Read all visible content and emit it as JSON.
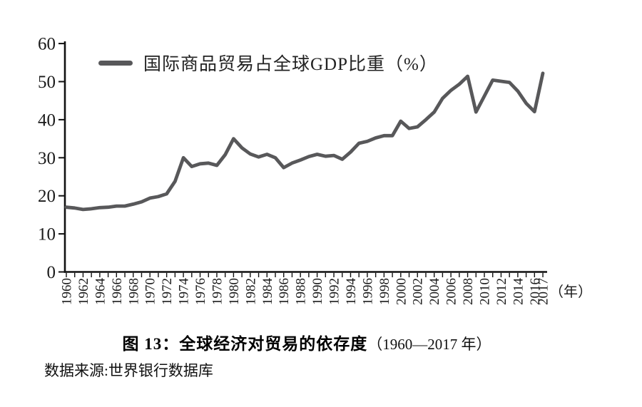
{
  "chart_data": {
    "type": "line",
    "title": "图 13：全球经济对贸易的依存度（1960—2017 年）",
    "legend": "国际商品贸易占全球GDP比重（%）",
    "legend_position": "top-left",
    "grid": "off",
    "line_color": "#58585a",
    "axis_color": "#111111",
    "x_axis": {
      "unit": "（年）",
      "tick_labels": [
        "1960",
        "1962",
        "1964",
        "1966",
        "1968",
        "1970",
        "1972",
        "1974",
        "1976",
        "1978",
        "1980",
        "1982",
        "1984",
        "1986",
        "1988",
        "1990",
        "1992",
        "1994",
        "1996",
        "1998",
        "2000",
        "2002",
        "2004",
        "2006",
        "2008",
        "2010",
        "2012",
        "2014",
        "2016",
        "2017"
      ]
    },
    "y_axis": {
      "ticks": [
        0,
        10,
        20,
        30,
        40,
        50,
        60
      ],
      "ylim": [
        0,
        60
      ]
    },
    "years": [
      1960,
      1961,
      1962,
      1963,
      1964,
      1965,
      1966,
      1967,
      1968,
      1969,
      1970,
      1971,
      1972,
      1973,
      1974,
      1975,
      1976,
      1977,
      1978,
      1979,
      1980,
      1981,
      1982,
      1983,
      1984,
      1985,
      1986,
      1987,
      1988,
      1989,
      1990,
      1991,
      1992,
      1993,
      1994,
      1995,
      1996,
      1997,
      1998,
      1999,
      2000,
      2001,
      2002,
      2003,
      2004,
      2005,
      2006,
      2007,
      2008,
      2009,
      2010,
      2011,
      2012,
      2013,
      2014,
      2015,
      2016,
      2017
    ],
    "values": [
      17.0,
      16.8,
      16.4,
      16.6,
      16.9,
      17.0,
      17.3,
      17.3,
      17.8,
      18.4,
      19.4,
      19.8,
      20.5,
      23.8,
      30.0,
      27.7,
      28.4,
      28.6,
      28.0,
      30.8,
      35.0,
      32.6,
      31.0,
      30.2,
      30.9,
      30.0,
      27.4,
      28.6,
      29.4,
      30.3,
      30.9,
      30.4,
      30.6,
      29.6,
      31.5,
      33.8,
      34.3,
      35.2,
      35.8,
      35.8,
      39.6,
      37.7,
      38.1,
      40.0,
      42.0,
      45.6,
      47.7,
      49.3,
      51.4,
      42.0,
      46.2,
      50.4,
      50.1,
      49.8,
      47.5,
      44.3,
      42.1,
      52.2
    ]
  },
  "caption": {
    "title_bold": "图 13：全球经济对贸易的依存度",
    "title_range": "（1960—2017 年）",
    "source": "数据来源:世界银行数据库"
  }
}
